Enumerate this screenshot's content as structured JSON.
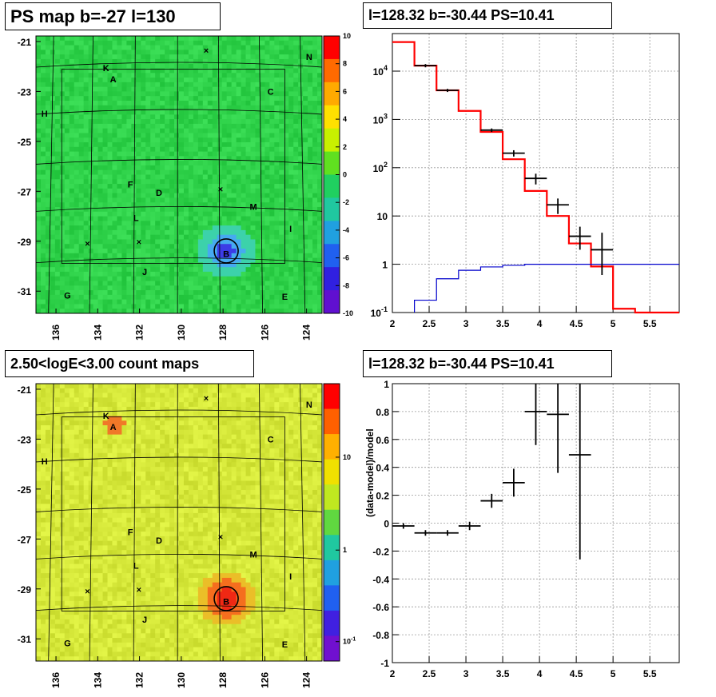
{
  "panels": {
    "tl": {
      "title": "PS map b=-27 l=130"
    },
    "tr": {
      "title": "l=128.32 b=-30.44 PS=10.41"
    },
    "bl": {
      "title": "2.50<logE<3.00 count maps"
    },
    "br": {
      "title": "l=128.32 b=-30.44 PS=10.41"
    }
  },
  "colors": {
    "green_map": "#2fd24a",
    "yellow_map": "#d6e83a",
    "model_line": "#ff0000",
    "bg_line": "#0000cc",
    "data_cross": "#000000"
  },
  "chart_data": [
    {
      "type": "heatmap",
      "title": "PS map b=-27 l=130",
      "x_ticks": [
        "136",
        "134",
        "132",
        "130",
        "128",
        "126",
        "124"
      ],
      "y_ticks": [
        "-21",
        "-23",
        "-25",
        "-27",
        "-29",
        "-31"
      ],
      "colorbar_ticks": [
        "10",
        "8",
        "6",
        "4",
        "2",
        "0",
        "-2",
        "-4",
        "-6",
        "-8",
        "-10"
      ],
      "colorbar_range": [
        -10,
        10
      ],
      "source_labels": [
        "K",
        "A",
        "N",
        "C",
        "H",
        "F",
        "D",
        "M",
        "L",
        "I",
        "B",
        "J",
        "G",
        "E"
      ],
      "grid": true
    },
    {
      "type": "line",
      "title": "l=128.32 b=-30.44 PS=10.41",
      "log_y": true,
      "xlim": [
        2,
        5.9
      ],
      "ylim": [
        0.1,
        60000
      ],
      "x_ticks": [
        "2",
        "2.5",
        "3",
        "3.5",
        "4",
        "4.5",
        "5",
        "5.5"
      ],
      "y_ticks": [
        "10^-1",
        "1",
        "10",
        "10^2",
        "10^3",
        "10^4"
      ],
      "series": [
        {
          "style": "model",
          "bins": [
            2.0,
            2.3,
            2.6,
            2.9,
            3.2,
            3.5,
            3.8,
            4.1,
            4.4,
            4.7,
            5.0,
            5.3,
            5.9
          ],
          "values": [
            40000,
            13000,
            4000,
            1500,
            550,
            150,
            33,
            10,
            2.7,
            0.9,
            0.12,
            0.1
          ]
        },
        {
          "style": "background",
          "bins": [
            2.3,
            2.6,
            2.9,
            3.2,
            3.5,
            3.8,
            4.1,
            4.4,
            4.7,
            5.9
          ],
          "values": [
            0.18,
            0.5,
            0.75,
            0.88,
            0.95,
            1.0,
            1.0,
            1.0,
            1.0
          ]
        },
        {
          "style": "data",
          "x": [
            2.45,
            2.75,
            3.35,
            3.65,
            3.95,
            4.25,
            4.55,
            4.85
          ],
          "y": [
            13000,
            4000,
            600,
            200,
            60,
            17,
            3.8,
            2.0
          ],
          "xerr": 0.15,
          "ylo": [
            12000,
            3700,
            550,
            170,
            45,
            11,
            2.0,
            0.6
          ],
          "yhi": [
            14000,
            4300,
            650,
            230,
            75,
            23,
            6.0,
            4.5
          ]
        }
      ]
    },
    {
      "type": "heatmap",
      "title": "2.50<logE<3.00 count maps",
      "x_ticks": [
        "136",
        "134",
        "132",
        "130",
        "128",
        "126",
        "124"
      ],
      "y_ticks": [
        "-21",
        "-23",
        "-25",
        "-27",
        "-29",
        "-31"
      ],
      "colorbar_ticks": [
        "10",
        "1",
        "10^-1"
      ],
      "log_scale": true,
      "source_labels": [
        "K",
        "A",
        "N",
        "C",
        "H",
        "F",
        "D",
        "M",
        "L",
        "I",
        "B",
        "J",
        "G",
        "E"
      ],
      "grid": true
    },
    {
      "type": "scatter",
      "title": "l=128.32 b=-30.44 PS=10.41",
      "ylabel": "(data-model)/model",
      "xlim": [
        2,
        5.9
      ],
      "ylim": [
        -1,
        1
      ],
      "x_ticks": [
        "2",
        "2.5",
        "3",
        "3.5",
        "4",
        "4.5",
        "5",
        "5.5"
      ],
      "y_ticks": [
        "-1",
        "-0.8",
        "-0.6",
        "-0.4",
        "-0.2",
        "0",
        "0.2",
        "0.4",
        "0.6",
        "0.8",
        "1"
      ],
      "series": [
        {
          "x": [
            2.15,
            2.45,
            2.75,
            3.05,
            3.35,
            3.65,
            3.95,
            4.25,
            4.55
          ],
          "y": [
            -0.02,
            -0.07,
            -0.07,
            -0.02,
            0.16,
            0.29,
            0.8,
            0.78,
            0.49
          ],
          "xerr": 0.15,
          "ylo": [
            -0.04,
            -0.09,
            -0.09,
            -0.05,
            0.11,
            0.19,
            0.56,
            0.36,
            -0.26
          ],
          "yhi": [
            0.0,
            -0.05,
            -0.05,
            0.01,
            0.21,
            0.39,
            1.0,
            1.0,
            1.0
          ]
        }
      ]
    }
  ]
}
